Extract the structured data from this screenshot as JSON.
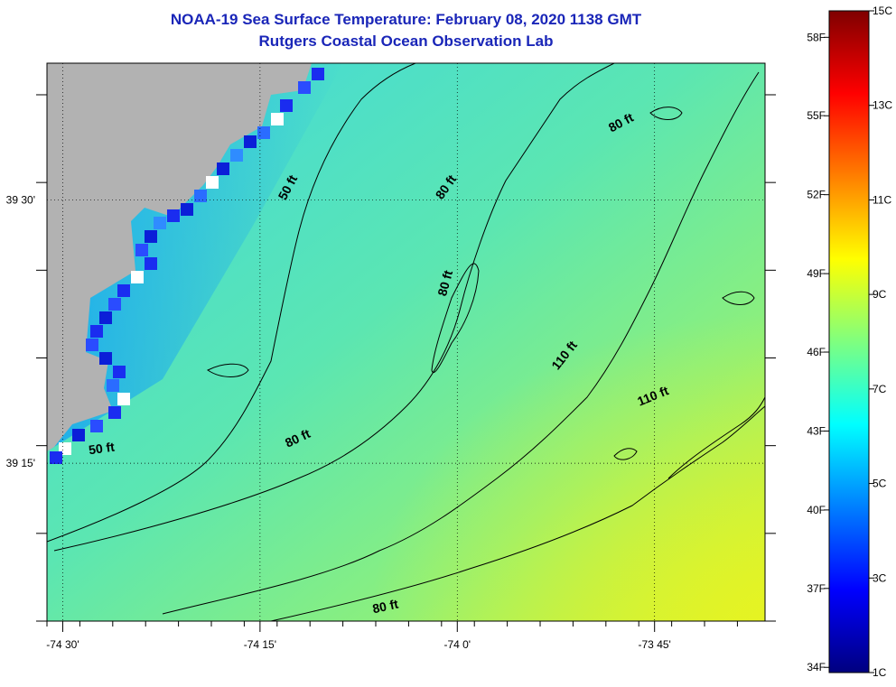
{
  "chart_data": {
    "type": "heatmap",
    "title": "NOAA-19 Sea Surface Temperature:  February 08, 2020 1138 GMT",
    "subtitle": "Rutgers Coastal Ocean Observation Lab",
    "xlim": [
      -74.52,
      -73.61
    ],
    "ylim": [
      39.1,
      39.63
    ],
    "x_ticks": [
      {
        "value": -74.5,
        "label": "-74 30'"
      },
      {
        "value": -74.25,
        "label": "-74 15'"
      },
      {
        "value": -74.0,
        "label": "-74 0'"
      },
      {
        "value": -73.75,
        "label": "-73 45'"
      }
    ],
    "y_ticks": [
      {
        "value": 39.5,
        "label": "39 30'"
      },
      {
        "value": 39.25,
        "label": "39 15'"
      }
    ],
    "grid": "dotted",
    "colorbar": {
      "range_c": [
        1,
        15
      ],
      "celsius_labels": [
        {
          "value": 1,
          "label": "1C"
        },
        {
          "value": 3,
          "label": "3C"
        },
        {
          "value": 5,
          "label": "5C"
        },
        {
          "value": 7,
          "label": "7C"
        },
        {
          "value": 9,
          "label": "9C"
        },
        {
          "value": 11,
          "label": "11C"
        },
        {
          "value": 13,
          "label": "13C"
        },
        {
          "value": 15,
          "label": "15C"
        }
      ],
      "fahrenheit_labels": [
        {
          "value": 1.11,
          "label": "34F"
        },
        {
          "value": 2.78,
          "label": "37F"
        },
        {
          "value": 4.44,
          "label": "40F"
        },
        {
          "value": 6.11,
          "label": "43F"
        },
        {
          "value": 7.78,
          "label": "46F"
        },
        {
          "value": 9.44,
          "label": "49F"
        },
        {
          "value": 11.11,
          "label": "52F"
        },
        {
          "value": 12.78,
          "label": "55F"
        },
        {
          "value": 14.44,
          "label": "58F"
        }
      ]
    },
    "colors": {
      "land": "#b2b2b2",
      "no_data": "#ffffff",
      "contour": "#000000",
      "title": "#1a26b8"
    },
    "contour_labels": [
      {
        "text": "50 ft",
        "lon": -74.21,
        "lat": 39.51,
        "angle": -62
      },
      {
        "text": "50 ft",
        "lon": -74.45,
        "lat": 39.26,
        "angle": -8
      },
      {
        "text": "80 ft",
        "lon": -74.01,
        "lat": 39.51,
        "angle": -55
      },
      {
        "text": "80 ft",
        "lon": -74.01,
        "lat": 39.42,
        "angle": -75
      },
      {
        "text": "80 ft",
        "lon": -73.79,
        "lat": 39.57,
        "angle": -28
      },
      {
        "text": "80 ft",
        "lon": -74.2,
        "lat": 39.27,
        "angle": -25
      },
      {
        "text": "80 ft",
        "lon": -74.09,
        "lat": 39.11,
        "angle": -12
      },
      {
        "text": "110 ft",
        "lon": -73.86,
        "lat": 39.35,
        "angle": -52
      },
      {
        "text": "110 ft",
        "lon": -73.75,
        "lat": 39.31,
        "angle": -22
      }
    ]
  }
}
